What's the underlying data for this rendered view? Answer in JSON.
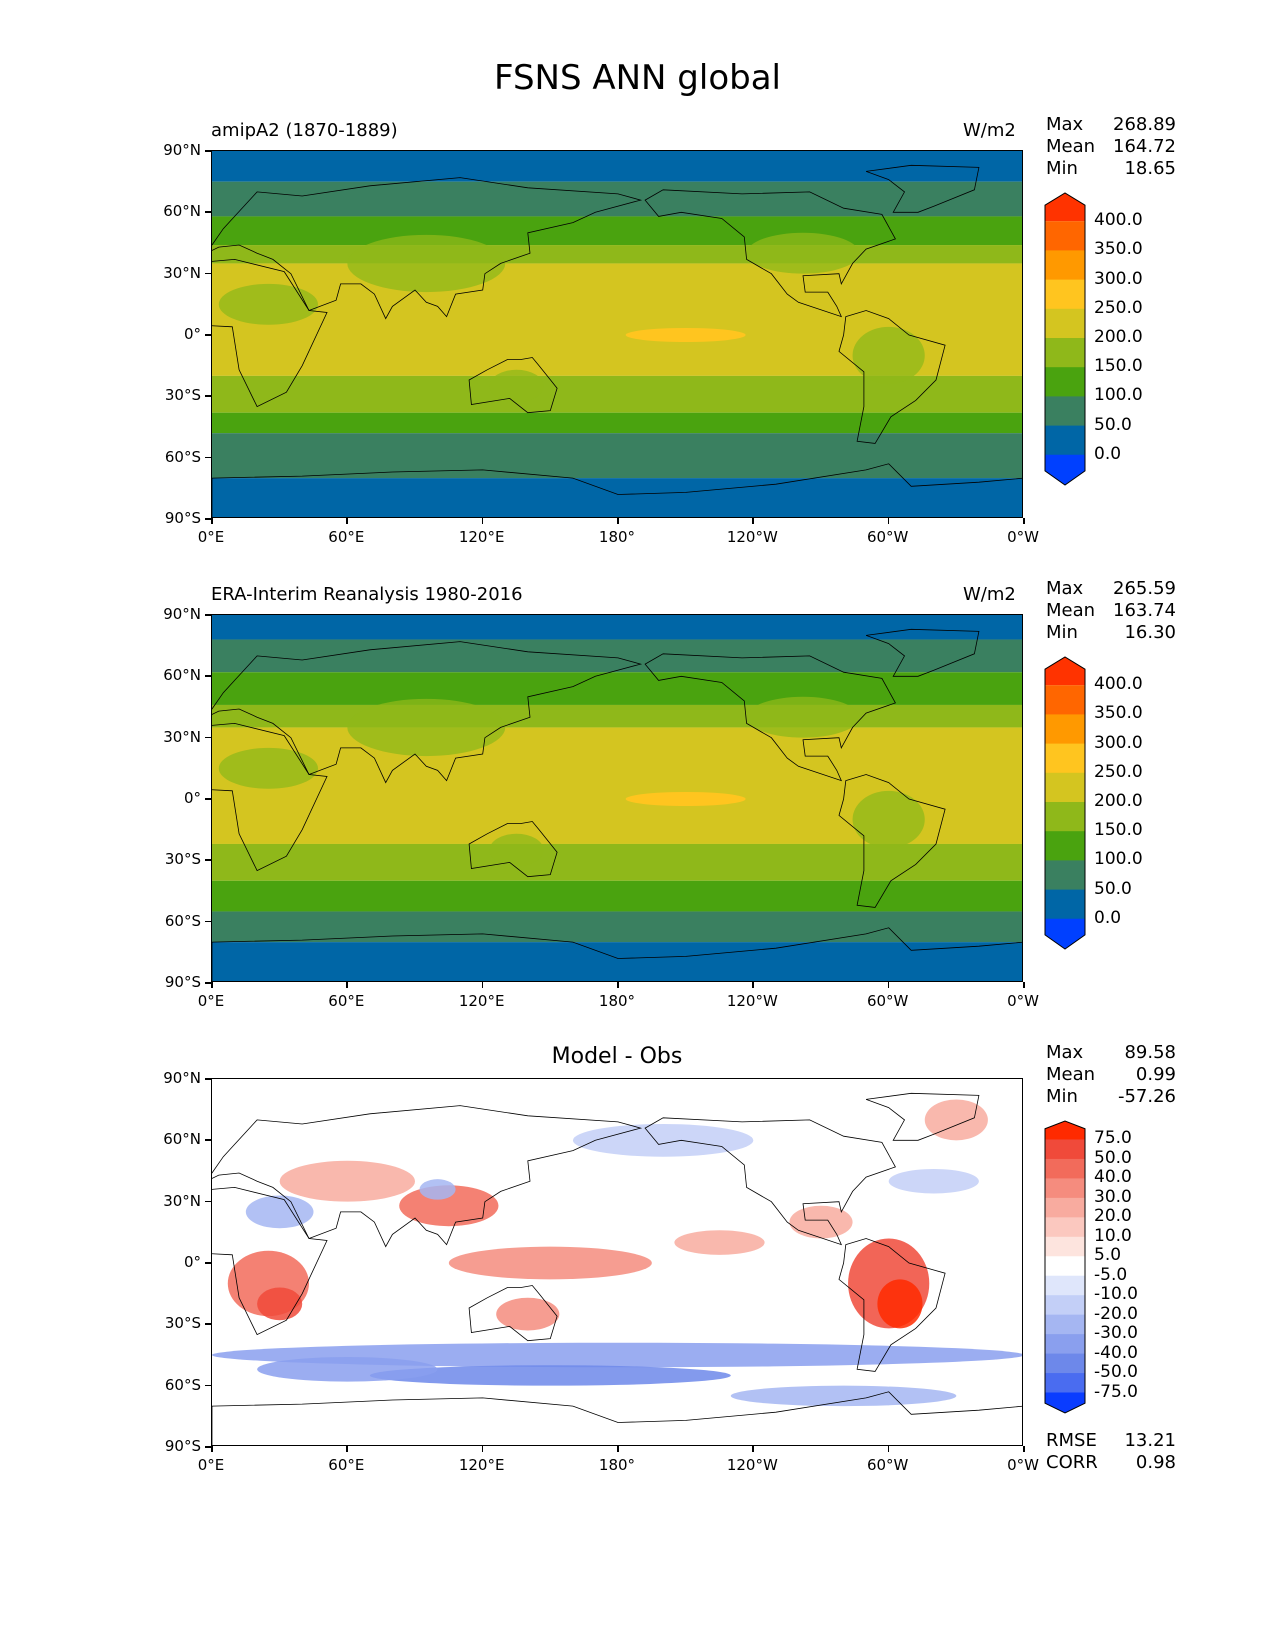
{
  "title": "FSNS ANN global",
  "y_ticks": [
    "90°N",
    "60°N",
    "30°N",
    "0°",
    "30°S",
    "60°S",
    "90°S"
  ],
  "x_ticks": [
    "0°E",
    "60°E",
    "120°E",
    "180°",
    "120°W",
    "60°W",
    "0°W"
  ],
  "panels": [
    {
      "left_label": "amipA2 (1870-1889)",
      "center_label": "",
      "units": "W/m2",
      "stats": {
        "max_label": "Max",
        "max": "268.89",
        "mean_label": "Mean",
        "mean": "164.72",
        "min_label": "Min",
        "min": "18.65"
      },
      "colorbar": {
        "levels": [
          "400.0",
          "350.0",
          "300.0",
          "250.0",
          "200.0",
          "150.0",
          "100.0",
          "50.0",
          "0.0"
        ],
        "colors": [
          "#ff3300",
          "#ff6600",
          "#ff9900",
          "#ffc51f",
          "#d4c520",
          "#8fb81a",
          "#4aa30f",
          "#3a8060",
          "#0066a6",
          "#0040ff"
        ]
      }
    },
    {
      "left_label": "ERA-Interim Reanalysis 1980-2016",
      "center_label": "",
      "units": "W/m2",
      "stats": {
        "max_label": "Max",
        "max": "265.59",
        "mean_label": "Mean",
        "mean": "163.74",
        "min_label": "Min",
        "min": "16.30"
      },
      "colorbar": {
        "levels": [
          "400.0",
          "350.0",
          "300.0",
          "250.0",
          "200.0",
          "150.0",
          "100.0",
          "50.0",
          "0.0"
        ],
        "colors": [
          "#ff3300",
          "#ff6600",
          "#ff9900",
          "#ffc51f",
          "#d4c520",
          "#8fb81a",
          "#4aa30f",
          "#3a8060",
          "#0066a6",
          "#0040ff"
        ]
      }
    },
    {
      "left_label": "",
      "center_label": "Model - Obs",
      "units": "",
      "stats": {
        "max_label": "Max",
        "max": "89.58",
        "mean_label": "Mean",
        "mean": "0.99",
        "min_label": "Min",
        "min": "-57.26"
      },
      "extra_stats": {
        "rmse_label": "RMSE",
        "rmse": "13.21",
        "corr_label": "CORR",
        "corr": "0.98"
      },
      "colorbar": {
        "levels": [
          "75.0",
          "50.0",
          "40.0",
          "30.0",
          "20.0",
          "10.0",
          "5.0",
          "-5.0",
          "-10.0",
          "-20.0",
          "-30.0",
          "-40.0",
          "-50.0",
          "-75.0"
        ],
        "colors": [
          "#ff2a00",
          "#f04a3a",
          "#f26b5b",
          "#f58c7e",
          "#f8ab9f",
          "#fbc8bf",
          "#fde4de",
          "#ffffff",
          "#dfe6fb",
          "#c3cff7",
          "#a5b6f2",
          "#8a9fee",
          "#6d88ea",
          "#4a6cf0",
          "#0a3cff"
        ]
      }
    }
  ],
  "colors": {
    "ocean_polar": "#0066a6",
    "subpolar": "#3a8060",
    "midlat": "#4aa30f",
    "subtrop": "#8fb81a",
    "tropics": "#d4c520",
    "hot": "#ffc51f",
    "coast": "#000000"
  }
}
